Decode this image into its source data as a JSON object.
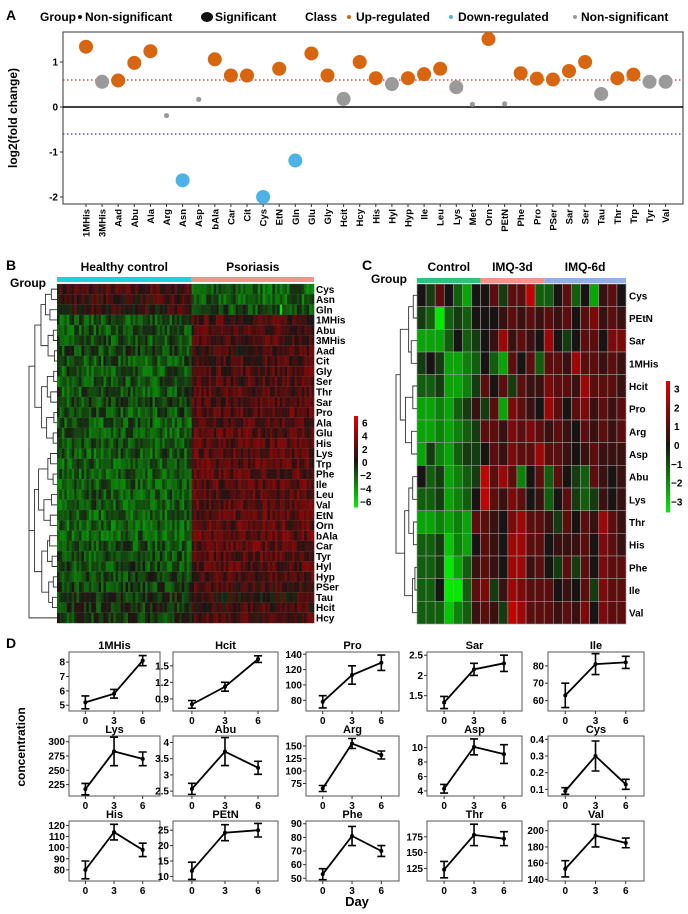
{
  "panel_labels": {
    "a": "A",
    "b": "B",
    "c": "C",
    "d": "D"
  },
  "legend": {
    "group_title": "Group",
    "group_nonsig": "Non-significant",
    "group_sig": "Significant",
    "class_title": "Class",
    "class_up": "Up-regulated",
    "class_down": "Down-regulated",
    "class_nonsig": "Non-significant"
  },
  "colors": {
    "up": "#d8650f",
    "down": "#4db3e6",
    "nonsig": "#9a9a9a",
    "healthy": "#22d0dd",
    "psoriasis": "#f2968a",
    "control": "#2ec27e",
    "imq3d": "#f2968a",
    "imq6d": "#8fb0e8",
    "threshold_up": "#d22",
    "threshold_down": "#33c"
  },
  "chart_data": [
    {
      "type": "scatter",
      "panel": "A",
      "ylabel": "log2(fold change)",
      "ylim": [
        -2.1,
        1.65
      ],
      "yticks": [
        1,
        0,
        -1,
        -2
      ],
      "thresholds": [
        0.6,
        -0.6
      ],
      "categories": [
        "1MHis",
        "3MHis",
        "Aad",
        "Abu",
        "Ala",
        "Arg",
        "Asn",
        "Asp",
        "bAla",
        "Car",
        "Cit",
        "Cys",
        "EtN",
        "Gln",
        "Glu",
        "Gly",
        "Hcit",
        "Hcy",
        "His",
        "Hyl",
        "Hyp",
        "Ile",
        "Leu",
        "Lys",
        "Met",
        "Orn",
        "PEtN",
        "Phe",
        "Pro",
        "PSer",
        "Sar",
        "Ser",
        "Tau",
        "Thr",
        "Trp",
        "Tyr",
        "Val"
      ],
      "values": [
        1.34,
        0.56,
        0.59,
        0.98,
        1.24,
        -0.19,
        -1.63,
        0.17,
        1.06,
        0.7,
        0.7,
        -2.0,
        0.85,
        -1.19,
        1.19,
        0.7,
        0.18,
        1.0,
        0.64,
        0.51,
        0.64,
        0.73,
        0.85,
        0.44,
        0.06,
        1.51,
        0.07,
        0.75,
        0.63,
        0.61,
        0.8,
        1.0,
        0.29,
        0.64,
        0.72,
        0.56,
        0.56
      ],
      "class": [
        "up",
        "nonsig",
        "up",
        "up",
        "up",
        "nonsig",
        "down",
        "nonsig",
        "up",
        "up",
        "up",
        "down",
        "up",
        "down",
        "up",
        "up",
        "nonsig",
        "up",
        "up",
        "nonsig",
        "up",
        "up",
        "up",
        "nonsig",
        "nonsig",
        "up",
        "nonsig",
        "up",
        "up",
        "up",
        "up",
        "up",
        "nonsig",
        "up",
        "up",
        "nonsig",
        "nonsig"
      ],
      "significant": [
        true,
        true,
        true,
        true,
        true,
        false,
        true,
        false,
        true,
        true,
        true,
        true,
        true,
        true,
        true,
        true,
        true,
        true,
        true,
        true,
        true,
        true,
        true,
        true,
        false,
        true,
        false,
        true,
        true,
        true,
        true,
        true,
        true,
        true,
        true,
        true,
        true
      ]
    },
    {
      "type": "heatmap",
      "panel": "B",
      "group_label": "Group",
      "groups": [
        "Healthy control",
        "Psoriasis"
      ],
      "colorbar_ticks": [
        6,
        4,
        2,
        0,
        -2,
        -4,
        -6
      ],
      "rows": [
        "Cys",
        "Asn",
        "Gln",
        "1MHis",
        "Abu",
        "3MHis",
        "Aad",
        "Cit",
        "Gly",
        "Ser",
        "Thr",
        "Sar",
        "Pro",
        "Ala",
        "Glu",
        "His",
        "Lys",
        "Trp",
        "Phe",
        "Ile",
        "Leu",
        "Val",
        "EtN",
        "Orn",
        "bAla",
        "Car",
        "Tyr",
        "Hyl",
        "Hyp",
        "PSer",
        "Tau",
        "Hcit",
        "Hcy"
      ],
      "group_means": [
        [
          0.6,
          -1.0
        ],
        [
          0.5,
          -1.0
        ],
        [
          0.4,
          -0.8
        ],
        [
          -0.8,
          0.7
        ],
        [
          -0.8,
          0.8
        ],
        [
          -0.8,
          0.7
        ],
        [
          -0.6,
          0.6
        ],
        [
          -0.8,
          0.7
        ],
        [
          -0.8,
          0.8
        ],
        [
          -0.8,
          0.8
        ],
        [
          -0.8,
          0.8
        ],
        [
          -0.7,
          0.8
        ],
        [
          -0.8,
          0.9
        ],
        [
          -0.9,
          0.9
        ],
        [
          -0.9,
          0.9
        ],
        [
          -0.9,
          0.9
        ],
        [
          -0.9,
          0.9
        ],
        [
          -0.9,
          0.9
        ],
        [
          -0.9,
          0.9
        ],
        [
          -0.9,
          0.9
        ],
        [
          -0.9,
          0.9
        ],
        [
          -0.9,
          0.9
        ],
        [
          -1.0,
          0.9
        ],
        [
          -1.0,
          1.0
        ],
        [
          -1.0,
          1.0
        ],
        [
          -0.8,
          1.0
        ],
        [
          -0.8,
          0.9
        ],
        [
          -0.7,
          0.8
        ],
        [
          -0.6,
          0.7
        ],
        [
          -0.5,
          0.6
        ],
        [
          -0.3,
          0.4
        ],
        [
          -0.4,
          0.6
        ],
        [
          -0.4,
          0.6
        ]
      ]
    },
    {
      "type": "heatmap",
      "panel": "C",
      "group_label": "Group",
      "groups": [
        "Control",
        "IMQ-3d",
        "IMQ-6d"
      ],
      "colorbar_ticks": [
        3,
        2,
        1,
        0,
        -1,
        -2,
        -3
      ],
      "rows": [
        "Cys",
        "PEtN",
        "Sar",
        "1MHis",
        "Hcit",
        "Pro",
        "Arg",
        "Asp",
        "Abu",
        "Lys",
        "Thr",
        "His",
        "Phe",
        "Ile",
        "Val"
      ],
      "values": [
        [
          0,
          -0.5,
          1,
          0,
          -1,
          -2,
          0,
          0,
          1,
          -0.5,
          1,
          1,
          2.5,
          -1,
          -1,
          0,
          1,
          -1,
          0,
          -2,
          0.5,
          1,
          0
        ],
        [
          -0.5,
          -1,
          -3,
          -1,
          -0.5,
          -1,
          0,
          0,
          0,
          0.5,
          1,
          0.5,
          1,
          0.5,
          1,
          0.5,
          1,
          0,
          1,
          1.5,
          0.5,
          1,
          0.5
        ],
        [
          -2,
          -2,
          -2,
          -1,
          0,
          -1,
          -0.5,
          0,
          0.5,
          2,
          0.5,
          1,
          0.5,
          0,
          2,
          0,
          -0.5,
          0,
          1,
          1,
          0,
          1.5,
          1.5
        ],
        [
          -0.5,
          0,
          -0.5,
          -2,
          -2,
          -1.5,
          -1,
          0,
          -1,
          -2,
          1,
          0,
          1,
          -1,
          1,
          1,
          0.5,
          2,
          1,
          1,
          0.5,
          1,
          0.5
        ],
        [
          -1,
          -1,
          -0.5,
          -2,
          -2,
          -1.5,
          -0.5,
          1,
          0,
          1,
          -0.5,
          1,
          0.5,
          0.5,
          1.5,
          1,
          1,
          0.5,
          2,
          1,
          1,
          1,
          0.5
        ],
        [
          -2,
          -2,
          -1.5,
          -2,
          -1,
          -0.5,
          0.5,
          -0.5,
          1,
          -2,
          1.5,
          1,
          0.5,
          0,
          2,
          1,
          0,
          1,
          1.5,
          0.5,
          1,
          0.5,
          1
        ],
        [
          -2,
          -2,
          -1.5,
          -2,
          -1.5,
          -1,
          -0.5,
          1,
          1,
          0.5,
          1.5,
          1,
          1.5,
          1,
          0.5,
          1,
          0.5,
          0,
          1,
          0.5,
          1,
          0.5,
          1
        ],
        [
          -2,
          -0.5,
          -1.5,
          -2,
          -1,
          -0.5,
          -0.5,
          0,
          1,
          0.5,
          1.5,
          1,
          1,
          2,
          1,
          1,
          0.5,
          0,
          0.5,
          1,
          0.5,
          0.5,
          0.5
        ],
        [
          0,
          -1,
          -0.5,
          -2,
          -1.5,
          -1,
          -0.5,
          2.5,
          1,
          2,
          1,
          -1.5,
          0,
          1,
          -1,
          1,
          0,
          -0.5,
          -1,
          1,
          0.5,
          0,
          0.5
        ],
        [
          -1,
          -1,
          -0.5,
          -2,
          -1.5,
          -1,
          0,
          2.5,
          1,
          0.5,
          1.5,
          1,
          0,
          0.5,
          -1,
          0,
          1,
          -0.5,
          -1,
          -0.5,
          0.5,
          0,
          0.5
        ],
        [
          -2,
          -2,
          -1.5,
          -2,
          -1.5,
          -2,
          1,
          1,
          0.5,
          0,
          1.5,
          2,
          1,
          1,
          0.5,
          -0.5,
          1,
          0,
          1,
          0.5,
          2,
          1,
          0.5
        ],
        [
          -1,
          -1,
          -0.5,
          -2.5,
          -1.5,
          -2,
          0,
          1,
          0.5,
          0,
          2,
          2,
          1,
          1,
          0,
          0.5,
          0.5,
          0.5,
          1,
          0,
          1.5,
          1,
          0.5
        ],
        [
          -1,
          -1,
          -0.5,
          -3,
          -2,
          -1,
          0.5,
          1,
          0.5,
          0,
          2,
          2,
          0.5,
          1,
          0,
          -0.5,
          1,
          -0.5,
          1,
          0,
          1.5,
          1,
          1
        ],
        [
          -1,
          -1,
          0,
          -3,
          -3,
          -1,
          1,
          1.5,
          -0.5,
          0.5,
          2,
          1.5,
          1,
          1,
          1,
          0,
          0.5,
          0,
          1,
          -0.5,
          1.5,
          1,
          1
        ],
        [
          -1,
          -1,
          -1,
          -2.5,
          -1.5,
          -1,
          0.5,
          1,
          0.5,
          -0.5,
          2.5,
          2,
          1,
          1,
          1,
          0.5,
          1,
          0.5,
          1.5,
          0,
          1.5,
          1,
          1
        ]
      ],
      "group_sizes": [
        7,
        7,
        9
      ]
    },
    {
      "type": "line",
      "panel": "D",
      "xlabel": "Day",
      "ylabel": "concentration",
      "x": [
        0,
        3,
        6
      ],
      "plots": [
        {
          "title": "1MHis",
          "y": [
            5.2,
            5.8,
            8.1
          ],
          "err": [
            0.45,
            0.3,
            0.35
          ],
          "ylim": [
            4.6,
            8.7
          ],
          "yticks": [
            5,
            6,
            7,
            8
          ]
        },
        {
          "title": "Hcit",
          "y": [
            0.8,
            1.12,
            1.62
          ],
          "err": [
            0.07,
            0.08,
            0.06
          ],
          "ylim": [
            0.68,
            1.75
          ],
          "yticks": [
            0.9,
            1.2,
            1.5
          ]
        },
        {
          "title": "Pro",
          "y": [
            78,
            113,
            129
          ],
          "err": [
            8,
            12,
            10
          ],
          "ylim": [
            66,
            143
          ],
          "yticks": [
            80,
            100,
            120,
            140
          ]
        },
        {
          "title": "Sar",
          "y": [
            1.33,
            2.15,
            2.3
          ],
          "err": [
            0.15,
            0.15,
            0.2
          ],
          "ylim": [
            1.12,
            2.58
          ],
          "yticks": [
            1.5,
            2.0,
            2.5
          ]
        },
        {
          "title": "Ile",
          "y": [
            63,
            81,
            82
          ],
          "err": [
            7,
            6,
            3.5
          ],
          "ylim": [
            54,
            88
          ],
          "yticks": [
            60,
            70,
            80
          ]
        },
        {
          "title": "Lys",
          "y": [
            217,
            283,
            270
          ],
          "err": [
            10,
            25,
            12
          ],
          "ylim": [
            205,
            310
          ],
          "yticks": [
            225,
            250,
            275,
            300
          ]
        },
        {
          "title": "Abu",
          "y": [
            2.57,
            3.72,
            3.22
          ],
          "err": [
            0.17,
            0.43,
            0.2
          ],
          "ylim": [
            2.35,
            4.2
          ],
          "yticks": [
            2.5,
            3.0,
            3.5,
            4.0
          ]
        },
        {
          "title": "Arg",
          "y": [
            65,
            155,
            132
          ],
          "err": [
            6,
            10,
            8
          ],
          "ylim": [
            50,
            170
          ],
          "yticks": [
            75,
            100,
            125,
            150
          ]
        },
        {
          "title": "Asp",
          "y": [
            4.3,
            10.1,
            9.1
          ],
          "err": [
            0.6,
            1.1,
            1.3
          ],
          "ylim": [
            3.3,
            11.6
          ],
          "yticks": [
            4,
            6,
            8,
            10
          ]
        },
        {
          "title": "Cys",
          "y": [
            0.09,
            0.3,
            0.13
          ],
          "err": [
            0.02,
            0.09,
            0.03
          ],
          "ylim": [
            0.06,
            0.42
          ],
          "yticks": [
            0.1,
            0.2,
            0.3,
            0.4
          ]
        },
        {
          "title": "His",
          "y": [
            80,
            114,
            98
          ],
          "err": [
            8,
            7,
            6
          ],
          "ylim": [
            70,
            124
          ],
          "yticks": [
            80,
            90,
            100,
            110,
            120
          ]
        },
        {
          "title": "PEtN",
          "y": [
            11.8,
            24.2,
            25
          ],
          "err": [
            2.8,
            2.6,
            2.2
          ],
          "ylim": [
            8.5,
            28
          ],
          "yticks": [
            10,
            15,
            20,
            25
          ]
        },
        {
          "title": "Phe",
          "y": [
            53,
            81,
            70
          ],
          "err": [
            4,
            7,
            4
          ],
          "ylim": [
            48,
            92
          ],
          "yticks": [
            50,
            60,
            70,
            80,
            90
          ]
        },
        {
          "title": "Thr",
          "y": [
            123,
            178,
            172
          ],
          "err": [
            13,
            17,
            11
          ],
          "ylim": [
            105,
            200
          ],
          "yticks": [
            125,
            150,
            175
          ]
        },
        {
          "title": "Val",
          "y": [
            153,
            194,
            185
          ],
          "err": [
            10,
            14,
            6
          ],
          "ylim": [
            138,
            212
          ],
          "yticks": [
            140,
            160,
            180,
            200
          ]
        }
      ]
    }
  ]
}
